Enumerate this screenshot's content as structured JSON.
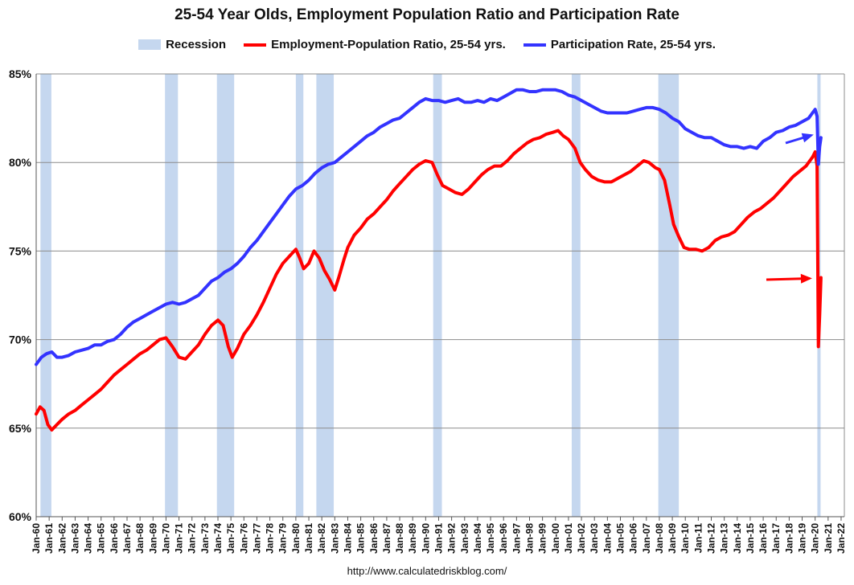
{
  "chart_data": {
    "type": "line",
    "title": "25-54 Year Olds, Employment Population Ratio and Participation Rate",
    "xlabel": "",
    "ylabel": "",
    "xlim": [
      1960.0,
      2022.25
    ],
    "ylim": [
      60,
      85
    ],
    "ytick_labels": [
      "85%",
      "80%",
      "75%",
      "70%",
      "65%",
      "60%"
    ],
    "ytick_values": [
      85,
      80,
      75,
      70,
      65,
      60
    ],
    "xtick_labels": [
      "Jan-60",
      "Jan-61",
      "Jan-62",
      "Jan-63",
      "Jan-64",
      "Jan-65",
      "Jan-66",
      "Jan-67",
      "Jan-68",
      "Jan-69",
      "Jan-70",
      "Jan-71",
      "Jan-72",
      "Jan-73",
      "Jan-74",
      "Jan-75",
      "Jan-76",
      "Jan-77",
      "Jan-78",
      "Jan-79",
      "Jan-80",
      "Jan-81",
      "Jan-82",
      "Jan-83",
      "Jan-84",
      "Jan-85",
      "Jan-86",
      "Jan-87",
      "Jan-88",
      "Jan-89",
      "Jan-90",
      "Jan-91",
      "Jan-92",
      "Jan-93",
      "Jan-94",
      "Jan-95",
      "Jan-96",
      "Jan-97",
      "Jan-98",
      "Jan-99",
      "Jan-00",
      "Jan-01",
      "Jan-02",
      "Jan-03",
      "Jan-04",
      "Jan-05",
      "Jan-06",
      "Jan-07",
      "Jan-08",
      "Jan-09",
      "Jan-10",
      "Jan-11",
      "Jan-12",
      "Jan-13",
      "Jan-14",
      "Jan-15",
      "Jan-16",
      "Jan-17",
      "Jan-18",
      "Jan-19",
      "Jan-20",
      "Jan-21",
      "Jan-22"
    ],
    "grid": "horizontal",
    "legend_placement": "top-center",
    "recessions": [
      [
        1960.33,
        1961.17
      ],
      [
        1969.92,
        1970.92
      ],
      [
        1973.92,
        1975.25
      ],
      [
        1980.0,
        1980.58
      ],
      [
        1981.58,
        1982.92
      ],
      [
        1990.58,
        1991.25
      ],
      [
        2001.25,
        2001.92
      ],
      [
        2007.92,
        2009.5
      ],
      [
        2020.17,
        2020.42
      ]
    ],
    "legend": {
      "recession_label": "Recession",
      "recession_color": "#c5d7ef"
    },
    "series": [
      {
        "name": "Employment-Population Ratio, 25-54 yrs.",
        "color": "#ff0000",
        "points": [
          [
            1960.0,
            65.8
          ],
          [
            1960.3,
            66.2
          ],
          [
            1960.6,
            66.0
          ],
          [
            1960.9,
            65.2
          ],
          [
            1961.2,
            64.9
          ],
          [
            1961.6,
            65.2
          ],
          [
            1962.0,
            65.5
          ],
          [
            1962.5,
            65.8
          ],
          [
            1963.0,
            66.0
          ],
          [
            1963.5,
            66.3
          ],
          [
            1964.0,
            66.6
          ],
          [
            1964.5,
            66.9
          ],
          [
            1965.0,
            67.2
          ],
          [
            1965.5,
            67.6
          ],
          [
            1966.0,
            68.0
          ],
          [
            1966.5,
            68.3
          ],
          [
            1967.0,
            68.6
          ],
          [
            1967.5,
            68.9
          ],
          [
            1968.0,
            69.2
          ],
          [
            1968.5,
            69.4
          ],
          [
            1969.0,
            69.7
          ],
          [
            1969.5,
            70.0
          ],
          [
            1970.0,
            70.1
          ],
          [
            1970.5,
            69.6
          ],
          [
            1971.0,
            69.0
          ],
          [
            1971.5,
            68.9
          ],
          [
            1972.0,
            69.3
          ],
          [
            1972.5,
            69.7
          ],
          [
            1973.0,
            70.3
          ],
          [
            1973.5,
            70.8
          ],
          [
            1974.0,
            71.1
          ],
          [
            1974.4,
            70.8
          ],
          [
            1974.8,
            69.6
          ],
          [
            1975.1,
            69.0
          ],
          [
            1975.5,
            69.5
          ],
          [
            1976.0,
            70.3
          ],
          [
            1976.5,
            70.8
          ],
          [
            1977.0,
            71.4
          ],
          [
            1977.5,
            72.1
          ],
          [
            1978.0,
            72.9
          ],
          [
            1978.5,
            73.7
          ],
          [
            1979.0,
            74.3
          ],
          [
            1979.5,
            74.7
          ],
          [
            1980.0,
            75.1
          ],
          [
            1980.3,
            74.6
          ],
          [
            1980.6,
            74.0
          ],
          [
            1981.0,
            74.3
          ],
          [
            1981.4,
            75.0
          ],
          [
            1981.8,
            74.6
          ],
          [
            1982.2,
            73.9
          ],
          [
            1982.6,
            73.4
          ],
          [
            1983.0,
            72.8
          ],
          [
            1983.3,
            73.5
          ],
          [
            1983.7,
            74.5
          ],
          [
            1984.0,
            75.2
          ],
          [
            1984.5,
            75.9
          ],
          [
            1985.0,
            76.3
          ],
          [
            1985.5,
            76.8
          ],
          [
            1986.0,
            77.1
          ],
          [
            1986.5,
            77.5
          ],
          [
            1987.0,
            77.9
          ],
          [
            1987.5,
            78.4
          ],
          [
            1988.0,
            78.8
          ],
          [
            1988.5,
            79.2
          ],
          [
            1989.0,
            79.6
          ],
          [
            1989.5,
            79.9
          ],
          [
            1990.0,
            80.1
          ],
          [
            1990.5,
            80.0
          ],
          [
            1990.9,
            79.3
          ],
          [
            1991.3,
            78.7
          ],
          [
            1991.8,
            78.5
          ],
          [
            1992.3,
            78.3
          ],
          [
            1992.8,
            78.2
          ],
          [
            1993.3,
            78.5
          ],
          [
            1993.8,
            78.9
          ],
          [
            1994.3,
            79.3
          ],
          [
            1994.8,
            79.6
          ],
          [
            1995.3,
            79.8
          ],
          [
            1995.8,
            79.8
          ],
          [
            1996.3,
            80.1
          ],
          [
            1996.8,
            80.5
          ],
          [
            1997.3,
            80.8
          ],
          [
            1997.8,
            81.1
          ],
          [
            1998.3,
            81.3
          ],
          [
            1998.8,
            81.4
          ],
          [
            1999.3,
            81.6
          ],
          [
            1999.8,
            81.7
          ],
          [
            2000.2,
            81.8
          ],
          [
            2000.6,
            81.5
          ],
          [
            2001.0,
            81.3
          ],
          [
            2001.5,
            80.8
          ],
          [
            2001.9,
            80.0
          ],
          [
            2002.3,
            79.6
          ],
          [
            2002.8,
            79.2
          ],
          [
            2003.3,
            79.0
          ],
          [
            2003.8,
            78.9
          ],
          [
            2004.3,
            78.9
          ],
          [
            2004.8,
            79.1
          ],
          [
            2005.3,
            79.3
          ],
          [
            2005.8,
            79.5
          ],
          [
            2006.3,
            79.8
          ],
          [
            2006.8,
            80.1
          ],
          [
            2007.2,
            80.0
          ],
          [
            2007.7,
            79.7
          ],
          [
            2008.0,
            79.6
          ],
          [
            2008.4,
            79.0
          ],
          [
            2008.8,
            77.6
          ],
          [
            2009.1,
            76.5
          ],
          [
            2009.5,
            75.8
          ],
          [
            2009.9,
            75.2
          ],
          [
            2010.3,
            75.1
          ],
          [
            2010.8,
            75.1
          ],
          [
            2011.3,
            75.0
          ],
          [
            2011.8,
            75.2
          ],
          [
            2012.3,
            75.6
          ],
          [
            2012.8,
            75.8
          ],
          [
            2013.3,
            75.9
          ],
          [
            2013.8,
            76.1
          ],
          [
            2014.3,
            76.5
          ],
          [
            2014.8,
            76.9
          ],
          [
            2015.3,
            77.2
          ],
          [
            2015.8,
            77.4
          ],
          [
            2016.3,
            77.7
          ],
          [
            2016.8,
            78.0
          ],
          [
            2017.3,
            78.4
          ],
          [
            2017.8,
            78.8
          ],
          [
            2018.3,
            79.2
          ],
          [
            2018.8,
            79.5
          ],
          [
            2019.3,
            79.8
          ],
          [
            2019.8,
            80.3
          ],
          [
            2020.0,
            80.6
          ],
          [
            2020.15,
            79.8
          ],
          [
            2020.25,
            69.6
          ],
          [
            2020.35,
            71.4
          ],
          [
            2020.45,
            73.5
          ]
        ]
      },
      {
        "name": "Participation Rate, 25-54 yrs.",
        "color": "#3333ff",
        "points": [
          [
            1960.0,
            68.6
          ],
          [
            1960.4,
            69.0
          ],
          [
            1960.8,
            69.2
          ],
          [
            1961.2,
            69.3
          ],
          [
            1961.6,
            69.0
          ],
          [
            1962.0,
            69.0
          ],
          [
            1962.5,
            69.1
          ],
          [
            1963.0,
            69.3
          ],
          [
            1963.5,
            69.4
          ],
          [
            1964.0,
            69.5
          ],
          [
            1964.5,
            69.7
          ],
          [
            1965.0,
            69.7
          ],
          [
            1965.5,
            69.9
          ],
          [
            1966.0,
            70.0
          ],
          [
            1966.5,
            70.3
          ],
          [
            1967.0,
            70.7
          ],
          [
            1967.5,
            71.0
          ],
          [
            1968.0,
            71.2
          ],
          [
            1968.5,
            71.4
          ],
          [
            1969.0,
            71.6
          ],
          [
            1969.5,
            71.8
          ],
          [
            1970.0,
            72.0
          ],
          [
            1970.5,
            72.1
          ],
          [
            1971.0,
            72.0
          ],
          [
            1971.5,
            72.1
          ],
          [
            1972.0,
            72.3
          ],
          [
            1972.5,
            72.5
          ],
          [
            1973.0,
            72.9
          ],
          [
            1973.5,
            73.3
          ],
          [
            1974.0,
            73.5
          ],
          [
            1974.5,
            73.8
          ],
          [
            1975.0,
            74.0
          ],
          [
            1975.5,
            74.3
          ],
          [
            1976.0,
            74.7
          ],
          [
            1976.5,
            75.2
          ],
          [
            1977.0,
            75.6
          ],
          [
            1977.5,
            76.1
          ],
          [
            1978.0,
            76.6
          ],
          [
            1978.5,
            77.1
          ],
          [
            1979.0,
            77.6
          ],
          [
            1979.5,
            78.1
          ],
          [
            1980.0,
            78.5
          ],
          [
            1980.5,
            78.7
          ],
          [
            1981.0,
            79.0
          ],
          [
            1981.5,
            79.4
          ],
          [
            1982.0,
            79.7
          ],
          [
            1982.5,
            79.9
          ],
          [
            1983.0,
            80.0
          ],
          [
            1983.5,
            80.3
          ],
          [
            1984.0,
            80.6
          ],
          [
            1984.5,
            80.9
          ],
          [
            1985.0,
            81.2
          ],
          [
            1985.5,
            81.5
          ],
          [
            1986.0,
            81.7
          ],
          [
            1986.5,
            82.0
          ],
          [
            1987.0,
            82.2
          ],
          [
            1987.5,
            82.4
          ],
          [
            1988.0,
            82.5
          ],
          [
            1988.5,
            82.8
          ],
          [
            1989.0,
            83.1
          ],
          [
            1989.5,
            83.4
          ],
          [
            1990.0,
            83.6
          ],
          [
            1990.5,
            83.5
          ],
          [
            1991.0,
            83.5
          ],
          [
            1991.5,
            83.4
          ],
          [
            1992.0,
            83.5
          ],
          [
            1992.5,
            83.6
          ],
          [
            1993.0,
            83.4
          ],
          [
            1993.5,
            83.4
          ],
          [
            1994.0,
            83.5
          ],
          [
            1994.5,
            83.4
          ],
          [
            1995.0,
            83.6
          ],
          [
            1995.5,
            83.5
          ],
          [
            1996.0,
            83.7
          ],
          [
            1996.5,
            83.9
          ],
          [
            1997.0,
            84.1
          ],
          [
            1997.5,
            84.1
          ],
          [
            1998.0,
            84.0
          ],
          [
            1998.5,
            84.0
          ],
          [
            1999.0,
            84.1
          ],
          [
            1999.5,
            84.1
          ],
          [
            2000.0,
            84.1
          ],
          [
            2000.5,
            84.0
          ],
          [
            2001.0,
            83.8
          ],
          [
            2001.5,
            83.7
          ],
          [
            2002.0,
            83.5
          ],
          [
            2002.5,
            83.3
          ],
          [
            2003.0,
            83.1
          ],
          [
            2003.5,
            82.9
          ],
          [
            2004.0,
            82.8
          ],
          [
            2004.5,
            82.8
          ],
          [
            2005.0,
            82.8
          ],
          [
            2005.5,
            82.8
          ],
          [
            2006.0,
            82.9
          ],
          [
            2006.5,
            83.0
          ],
          [
            2007.0,
            83.1
          ],
          [
            2007.5,
            83.1
          ],
          [
            2008.0,
            83.0
          ],
          [
            2008.5,
            82.8
          ],
          [
            2009.0,
            82.5
          ],
          [
            2009.5,
            82.3
          ],
          [
            2010.0,
            81.9
          ],
          [
            2010.5,
            81.7
          ],
          [
            2011.0,
            81.5
          ],
          [
            2011.5,
            81.4
          ],
          [
            2012.0,
            81.4
          ],
          [
            2012.5,
            81.2
          ],
          [
            2013.0,
            81.0
          ],
          [
            2013.5,
            80.9
          ],
          [
            2014.0,
            80.9
          ],
          [
            2014.5,
            80.8
          ],
          [
            2015.0,
            80.9
          ],
          [
            2015.5,
            80.8
          ],
          [
            2016.0,
            81.2
          ],
          [
            2016.5,
            81.4
          ],
          [
            2017.0,
            81.7
          ],
          [
            2017.5,
            81.8
          ],
          [
            2018.0,
            82.0
          ],
          [
            2018.5,
            82.1
          ],
          [
            2019.0,
            82.3
          ],
          [
            2019.5,
            82.5
          ],
          [
            2019.8,
            82.8
          ],
          [
            2020.0,
            83.0
          ],
          [
            2020.15,
            82.6
          ],
          [
            2020.25,
            79.9
          ],
          [
            2020.35,
            80.9
          ],
          [
            2020.45,
            81.4
          ]
        ]
      }
    ]
  },
  "footer": {
    "source_url": "http://www.calculatedriskblog.com/"
  }
}
